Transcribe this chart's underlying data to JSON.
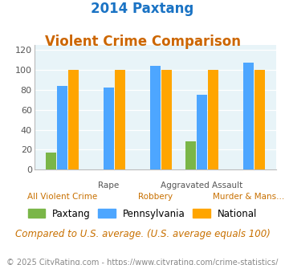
{
  "title_line1": "2014 Paxtang",
  "title_line2": "Violent Crime Comparison",
  "categories": [
    "All Violent Crime",
    "Rape",
    "Robbery",
    "Aggravated Assault",
    "Murder & Mans..."
  ],
  "cat_labels_top": [
    "",
    "Rape",
    "",
    "Aggravated Assault",
    ""
  ],
  "cat_labels_bot": [
    "All Violent Crime",
    "",
    "Robbery",
    "",
    "Murder & Mans..."
  ],
  "paxtang": [
    17,
    0,
    0,
    28,
    0
  ],
  "pennsylvania": [
    84,
    82,
    104,
    75,
    107
  ],
  "national": [
    100,
    100,
    100,
    100,
    100
  ],
  "bar_color_paxtang": "#7ab648",
  "bar_color_pennsylvania": "#4da6ff",
  "bar_color_national": "#ffa500",
  "ylim": [
    0,
    125
  ],
  "yticks": [
    0,
    20,
    40,
    60,
    80,
    100,
    120
  ],
  "title_color": "#1a73c4",
  "subtitle_color": "#cc6600",
  "bg_color": "#e8f4f8",
  "footer_note": "Compared to U.S. average. (U.S. average equals 100)",
  "copyright": "© 2025 CityRating.com - https://www.cityrating.com/crime-statistics/",
  "legend_labels": [
    "Paxtang",
    "Pennsylvania",
    "National"
  ],
  "title_fontsize": 12,
  "subtitle_fontsize": 12,
  "tick_fontsize": 8,
  "label_fontsize": 7.5,
  "legend_fontsize": 8.5,
  "footer_fontsize": 8.5,
  "copyright_fontsize": 7
}
